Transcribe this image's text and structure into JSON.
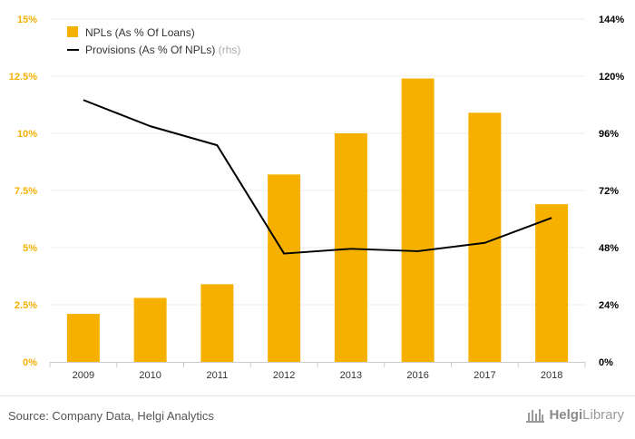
{
  "chart_data": {
    "type": "bar",
    "categories": [
      "2009",
      "2010",
      "2011",
      "2012",
      "2013",
      "2016",
      "2017",
      "2018"
    ],
    "series": [
      {
        "name": "NPLs (As % Of Loans)",
        "type": "bar",
        "axis": "left",
        "color": "#f6b000",
        "values": [
          2.1,
          2.8,
          3.4,
          8.2,
          10.0,
          12.4,
          10.9,
          6.9
        ]
      },
      {
        "name": "Provisions (As % Of NPLs)",
        "legend_suffix": "(rhs)",
        "type": "line",
        "axis": "right",
        "color": "#000000",
        "values": [
          110,
          99,
          91,
          45.5,
          47.5,
          46.5,
          50,
          60.5
        ]
      }
    ],
    "y_left": {
      "range": [
        0,
        15
      ],
      "ticks": [
        0,
        2.5,
        5,
        7.5,
        10,
        12.5,
        15
      ],
      "tick_labels": [
        "0%",
        "2.5%",
        "5%",
        "7.5%",
        "10%",
        "12.5%",
        "15%"
      ],
      "label_color": "#f6b000"
    },
    "y_right": {
      "range": [
        0,
        144
      ],
      "ticks": [
        0,
        24,
        48,
        72,
        96,
        120,
        144
      ],
      "tick_labels": [
        "0%",
        "24%",
        "48%",
        "72%",
        "96%",
        "120%",
        "144%"
      ],
      "label_color": "#000000"
    },
    "grid": true,
    "legend_position": "top-left"
  },
  "footer": {
    "source": "Source: Company Data, Helgi Analytics",
    "logo_prefix": "Helgi",
    "logo_suffix": "Library"
  }
}
